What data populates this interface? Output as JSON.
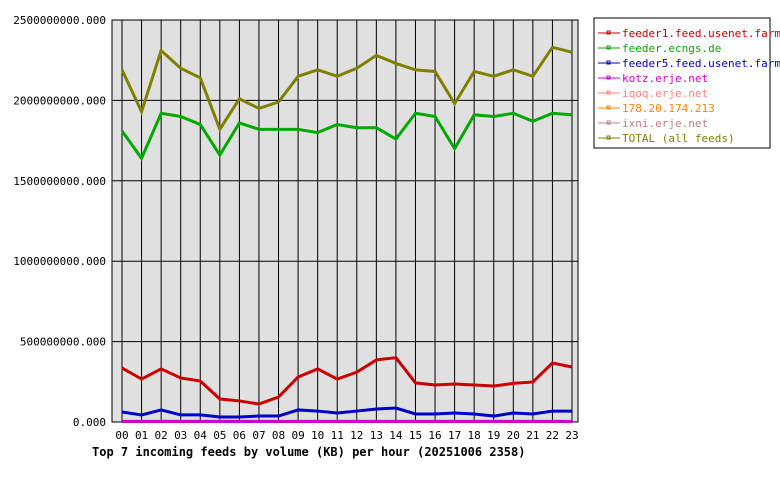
{
  "chart_data": {
    "type": "line",
    "title": "Top 7 incoming feeds by volume (KB) per hour (20251006 2358)",
    "categories": [
      "00",
      "01",
      "02",
      "03",
      "04",
      "05",
      "06",
      "07",
      "08",
      "09",
      "10",
      "11",
      "12",
      "13",
      "14",
      "15",
      "16",
      "17",
      "18",
      "19",
      "20",
      "21",
      "22",
      "23"
    ],
    "ylim": [
      0,
      2500000000
    ],
    "yticks": [
      "0.000",
      "500000000.000",
      "1000000000.000",
      "1500000000.000",
      "2000000000.000",
      "2500000000.000"
    ],
    "grid": true,
    "legend_placement": "right",
    "series": [
      {
        "name": "feeder1.feed.usenet.farm",
        "color": "#cc0000",
        "values": [
          336000000,
          267000000,
          330000000,
          274000000,
          255000000,
          143000000,
          131000000,
          112000000,
          155000000,
          280000000,
          330000000,
          267000000,
          310000000,
          386000000,
          400000000,
          243000000,
          230000000,
          236000000,
          230000000,
          224000000,
          240000000,
          249000000,
          367000000,
          342000000
        ]
      },
      {
        "name": "feeder.ecngs.de",
        "color": "#00aa00",
        "values": [
          1810000000,
          1640000000,
          1920000000,
          1900000000,
          1850000000,
          1660000000,
          1860000000,
          1820000000,
          1820000000,
          1820000000,
          1800000000,
          1850000000,
          1830000000,
          1830000000,
          1760000000,
          1920000000,
          1900000000,
          1700000000,
          1910000000,
          1900000000,
          1920000000,
          1870000000,
          1920000000,
          1910000000
        ]
      },
      {
        "name": "feeder5.feed.usenet.farm",
        "color": "#0000cc",
        "values": [
          62000000,
          44000000,
          75000000,
          44000000,
          44000000,
          31000000,
          31000000,
          37000000,
          37000000,
          75000000,
          68000000,
          56000000,
          68000000,
          81000000,
          87000000,
          50000000,
          50000000,
          56000000,
          50000000,
          37000000,
          56000000,
          50000000,
          68000000,
          68000000
        ]
      },
      {
        "name": "kotz.erje.net",
        "color": "#cc00cc",
        "values": [
          3000000,
          3000000,
          3000000,
          3000000,
          3000000,
          3000000,
          3000000,
          3000000,
          3000000,
          3000000,
          3000000,
          3000000,
          3000000,
          3000000,
          3000000,
          3000000,
          3000000,
          3000000,
          3000000,
          3000000,
          3000000,
          3000000,
          3000000,
          3000000
        ]
      },
      {
        "name": "iqoq.erje.net",
        "color": "#ff8080",
        "values": [
          3000000,
          3000000,
          3000000,
          3000000,
          3000000,
          3000000,
          3000000,
          3000000,
          3000000,
          3000000,
          3000000,
          3000000,
          3000000,
          3000000,
          3000000,
          3000000,
          3000000,
          3000000,
          3000000,
          3000000,
          3000000,
          3000000,
          3000000,
          3000000
        ]
      },
      {
        "name": "178.20.174.213",
        "color": "#ff8000",
        "values": [
          3000000,
          3000000,
          3000000,
          3000000,
          3000000,
          3000000,
          3000000,
          3000000,
          3000000,
          3000000,
          3000000,
          3000000,
          3000000,
          3000000,
          3000000,
          3000000,
          3000000,
          3000000,
          3000000,
          3000000,
          3000000,
          3000000,
          3000000,
          3000000
        ]
      },
      {
        "name": "ixni.erje.net",
        "color": "#c08080",
        "values": [
          5000000,
          5000000,
          5000000,
          5000000,
          5000000,
          5000000,
          5000000,
          5000000,
          5000000,
          5000000,
          5000000,
          5000000,
          5000000,
          5000000,
          5000000,
          5000000,
          5000000,
          5000000,
          5000000,
          5000000,
          5000000,
          5000000,
          5000000,
          5000000
        ]
      },
      {
        "name": "TOTAL (all feeds)",
        "color": "#808000",
        "values": [
          2190000000,
          1930000000,
          2310000000,
          2200000000,
          2140000000,
          1820000000,
          2010000000,
          1950000000,
          1990000000,
          2150000000,
          2190000000,
          2150000000,
          2200000000,
          2280000000,
          2230000000,
          2190000000,
          2180000000,
          1980000000,
          2180000000,
          2150000000,
          2190000000,
          2150000000,
          2330000000,
          2300000000
        ]
      }
    ]
  }
}
